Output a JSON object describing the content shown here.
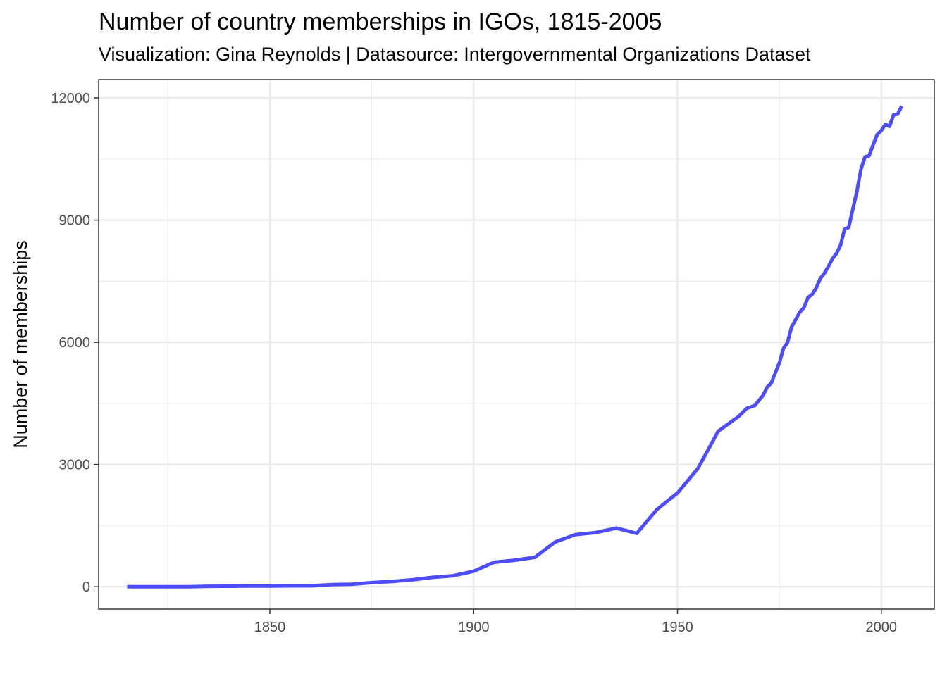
{
  "chart_data": {
    "type": "line",
    "title": "Number of country memberships in IGOs, 1815-2005",
    "subtitle": "Visualization: Gina Reynolds | Datasource: Intergovernmental Organizations Dataset",
    "xlabel": "",
    "ylabel": "Number of memberships",
    "xlim": [
      1808,
      2013
    ],
    "ylim": [
      -550,
      12450
    ],
    "x_ticks": [
      1850,
      1900,
      1950,
      2000
    ],
    "y_ticks": [
      0,
      3000,
      6000,
      9000,
      12000
    ],
    "x_minor": [
      1825,
      1875,
      1925,
      1975
    ],
    "y_minor": [
      1500,
      4500,
      7500,
      10500
    ],
    "grid": true,
    "line_color": "#4d4dff",
    "series": [
      {
        "x": [
          1815,
          1820,
          1825,
          1830,
          1835,
          1840,
          1845,
          1850,
          1855,
          1860,
          1865,
          1870,
          1875,
          1880,
          1885,
          1890,
          1895,
          1900,
          1905,
          1910,
          1915,
          1920,
          1925,
          1930,
          1935,
          1940,
          1945,
          1950,
          1955,
          1960,
          1965,
          1967,
          1969,
          1971,
          1972,
          1973,
          1975,
          1976,
          1977,
          1978,
          1979,
          1980,
          1981,
          1982,
          1983,
          1984,
          1985,
          1986,
          1987,
          1988,
          1989,
          1990,
          1991,
          1992,
          1993,
          1994,
          1995,
          1996,
          1997,
          1998,
          1999,
          2000,
          2001,
          2002,
          2003,
          2004,
          2005
        ],
        "y": [
          0,
          0,
          0,
          0,
          10,
          12,
          15,
          15,
          20,
          20,
          50,
          60,
          100,
          130,
          170,
          230,
          270,
          380,
          600,
          650,
          720,
          1100,
          1280,
          1330,
          1440,
          1310,
          1900,
          2300,
          2900,
          3820,
          4180,
          4380,
          4450,
          4700,
          4900,
          5000,
          5500,
          5850,
          6000,
          6380,
          6560,
          6740,
          6850,
          7100,
          7170,
          7330,
          7560,
          7690,
          7860,
          8050,
          8180,
          8380,
          8780,
          8820,
          9270,
          9700,
          10250,
          10550,
          10580,
          10850,
          11100,
          11200,
          11350,
          11300,
          11580,
          11600,
          11800
        ]
      }
    ]
  }
}
